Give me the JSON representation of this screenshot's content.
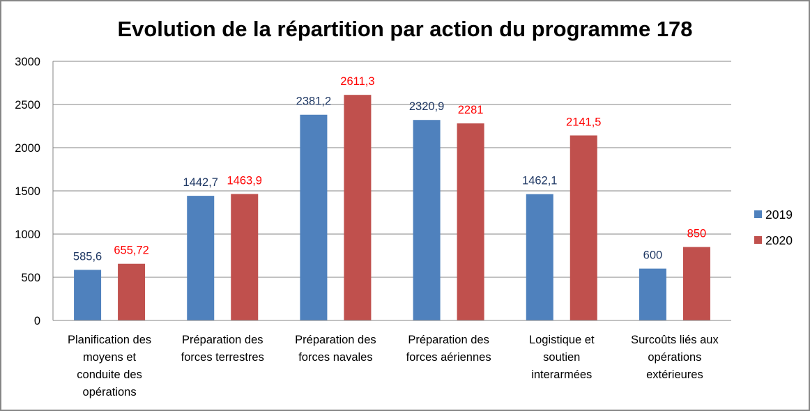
{
  "chart_data": {
    "type": "bar",
    "title": "Evolution de la répartition par action du programme 178",
    "xlabel": "",
    "ylabel": "",
    "ylim": [
      0,
      3000
    ],
    "yticks": [
      "0",
      "500",
      "1000",
      "1500",
      "2000",
      "2500",
      "3000"
    ],
    "ytick_values": [
      0,
      500,
      1000,
      1500,
      2000,
      2500,
      3000
    ],
    "grid": true,
    "legend_position": "right",
    "categories": [
      [
        "Planification des",
        "moyens et",
        "conduite des",
        "opérations"
      ],
      [
        "Préparation des",
        "forces terrestres"
      ],
      [
        "Préparation des",
        "forces navales"
      ],
      [
        "Préparation des",
        "forces aériennes"
      ],
      [
        "Logistique et",
        "soutien",
        "interarmées"
      ],
      [
        "Surcoûts liés aux",
        "opérations",
        "extérieures"
      ]
    ],
    "series": [
      {
        "name": "2019",
        "color": "#4F81BD",
        "label_color": "#1F3864",
        "values": [
          585.6,
          1442.7,
          2381.2,
          2320.9,
          1462.1,
          600
        ],
        "labels": [
          "585,6",
          "1442,7",
          "2381,2",
          "2320,9",
          "1462,1",
          "600"
        ]
      },
      {
        "name": "2020",
        "color": "#C0504D",
        "label_color": "#FF0000",
        "values": [
          655.72,
          1463.9,
          2611.3,
          2281,
          2141.5,
          850
        ],
        "labels": [
          "655,72",
          "1463,9",
          "2611,3",
          "2281",
          "2141,5",
          "850"
        ]
      }
    ]
  }
}
